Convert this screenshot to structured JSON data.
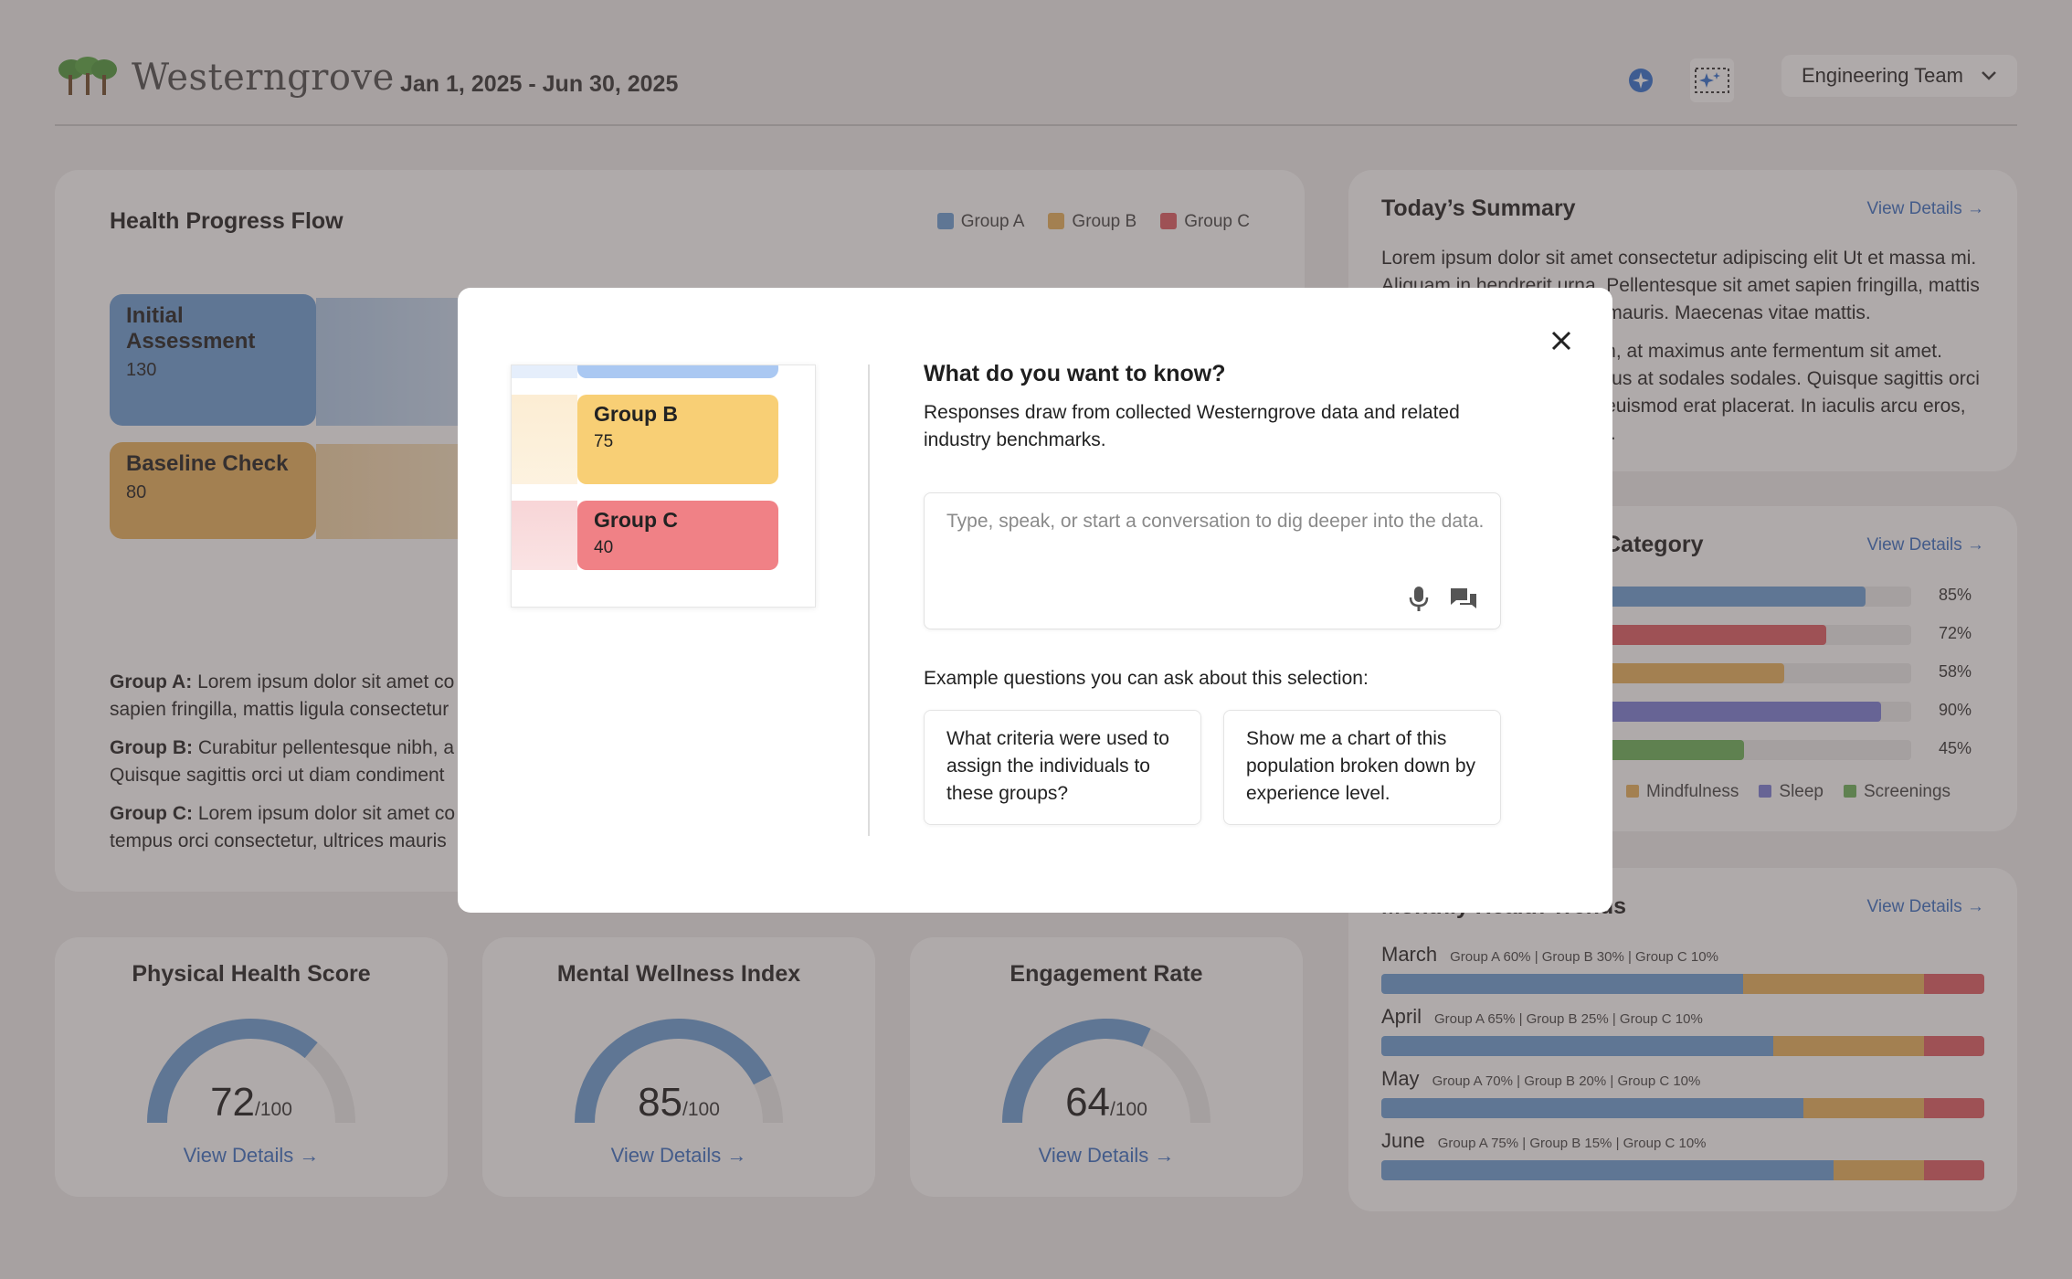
{
  "header": {
    "brand": "Westerngrove",
    "date_range": "Jan 1, 2025 - Jun 30, 2025",
    "team_select": "Engineering Team"
  },
  "colors": {
    "group_a": "#6c9fd7",
    "group_b": "#e9b15b",
    "group_c": "#df5c63",
    "sleep": "#7b7fd9",
    "screenings": "#6cb35a",
    "link": "#3a6fc4"
  },
  "flow": {
    "title": "Health Progress Flow",
    "legend": [
      "Group A",
      "Group B",
      "Group C"
    ],
    "nodes": [
      {
        "label": "Initial Assessment",
        "value": "130"
      },
      {
        "label": "Baseline Check",
        "value": "80"
      }
    ],
    "descriptions": [
      {
        "group": "Group A:",
        "text": "Lorem ipsum dolor sit amet co",
        "text2": "sapien fringilla, mattis ligula consectetur"
      },
      {
        "group": "Group B:",
        "text": "Curabitur pellentesque nibh, a",
        "text2": "Quisque sagittis orci ut diam condiment"
      },
      {
        "group": "Group C:",
        "text": "Lorem ipsum dolor sit amet co",
        "text2": "tempus orci consectetur, ultrices mauris"
      }
    ]
  },
  "scores": [
    {
      "title": "Physical Health Score",
      "value": "72",
      "max": "/100",
      "pct": 72,
      "link": "View Details →"
    },
    {
      "title": "Mental Wellness Index",
      "value": "85",
      "max": "/100",
      "pct": 85,
      "link": "View Details →"
    },
    {
      "title": "Engagement Rate",
      "value": "64",
      "max": "/100",
      "pct": 64,
      "link": "View Details →"
    }
  ],
  "summary": {
    "title": "Today’s Summary",
    "link": "View Details →",
    "p1": "Lorem ipsum dolor sit amet consectetur adipiscing elit Ut et massa mi. Aliquam in hendrerit urna. Pellentesque sit amet sapien fringilla, mattis ligula consectetur, ultrices mauris. Maecenas vitae mattis.",
    "p2": "Curabitur pellentesque nibh, at maximus ante fermentum sit amet. Pellentesque commodo lacus at sodales sodales. Quisque sagittis orci ut diam condimentum, vel euismod erat placerat. In iaculis arcu eros, eget tempus orci facilisis id."
  },
  "category": {
    "title": "by Category",
    "link": "View Details →",
    "bars": [
      {
        "pct": "85%",
        "value": 85,
        "color": "#6c9fd7"
      },
      {
        "pct": "72%",
        "value": 72,
        "color": "#df5c63"
      },
      {
        "pct": "58%",
        "value": 58,
        "color": "#e9b15b"
      },
      {
        "pct": "90%",
        "value": 90,
        "color": "#7b7fd9"
      },
      {
        "pct": "45%",
        "value": 45,
        "color": "#6cb35a"
      }
    ],
    "legend": [
      {
        "label": "Mindfulness",
        "color": "#e9b15b"
      },
      {
        "label": "Sleep",
        "color": "#7b7fd9"
      },
      {
        "label": "Screenings",
        "color": "#6cb35a"
      }
    ]
  },
  "trends": {
    "title": "Monthly Health Trends",
    "link": "View Details →",
    "months": [
      {
        "month": "March",
        "note": "Group A 60% | Group B 30% | Group C 10%",
        "a": 60,
        "b": 30,
        "c": 10
      },
      {
        "month": "April",
        "note": "Group A 65% | Group B 25% | Group C 10%",
        "a": 65,
        "b": 25,
        "c": 10
      },
      {
        "month": "May",
        "note": "Group A 70% | Group B 20% | Group C 10%",
        "a": 70,
        "b": 20,
        "c": 10
      },
      {
        "month": "June",
        "note": "Group A 75% | Group B 15% | Group C 10%",
        "a": 75,
        "b": 15,
        "c": 10
      }
    ]
  },
  "modal": {
    "preview_nodes": [
      {
        "label": "Group B",
        "value": "75"
      },
      {
        "label": "Group C",
        "value": "40"
      }
    ],
    "title": "What do you want to know?",
    "subtitle": "Responses draw from collected Westerngrove data and related industry benchmarks.",
    "input_placeholder": "Type, speak, or start a conversation to dig deeper into the data.",
    "examples_label": "Example questions you can ask about this selection:",
    "examples": [
      "What criteria were used to assign the individuals to these groups?",
      "Show me a chart of this population broken down by experience level."
    ]
  }
}
